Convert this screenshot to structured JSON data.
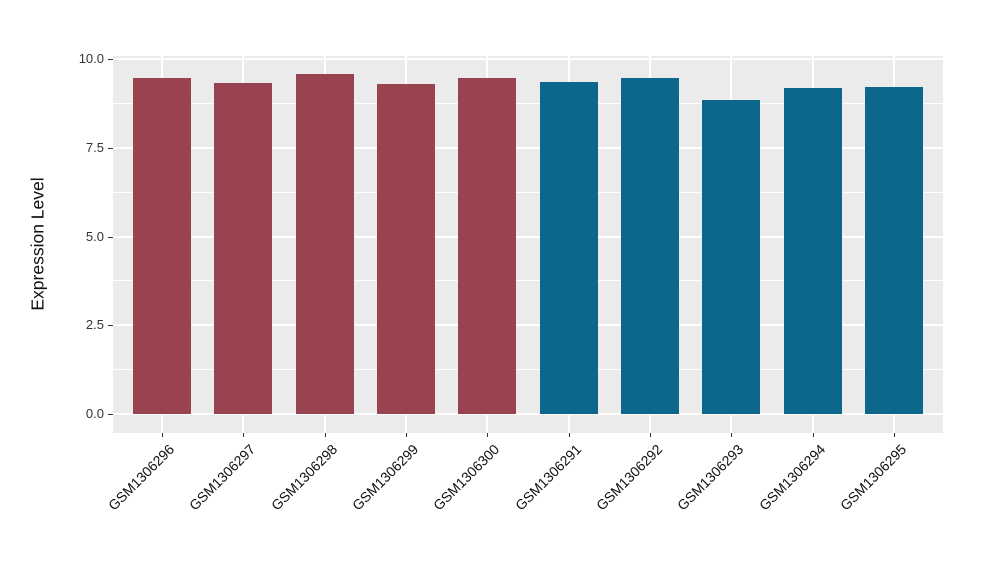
{
  "chart_data": {
    "type": "bar",
    "title": "",
    "xlabel": "",
    "ylabel": "Expression Level",
    "categories": [
      "GSM1306296",
      "GSM1306297",
      "GSM1306298",
      "GSM1306299",
      "GSM1306300",
      "GSM1306291",
      "GSM1306292",
      "GSM1306293",
      "GSM1306294",
      "GSM1306295"
    ],
    "values": [
      9.47,
      9.33,
      9.58,
      9.29,
      9.46,
      9.36,
      9.47,
      8.85,
      9.19,
      9.21
    ],
    "bar_colors": [
      "#9A4350",
      "#9A4350",
      "#9A4350",
      "#9A4350",
      "#9A4350",
      "#0C678A",
      "#0C678A",
      "#0C678A",
      "#0C678A",
      "#0C678A"
    ],
    "group_colors": {
      "left_group": "#9A4350",
      "right_group": "#0C678A"
    },
    "yticks": [
      0.0,
      2.5,
      5.0,
      7.5,
      10.0
    ],
    "ytick_labels": [
      "0.0",
      "2.5",
      "5.0",
      "7.5",
      "10.0"
    ],
    "ylim": [
      0,
      10
    ],
    "grid": true,
    "legend": false,
    "panel_background": "#EBEBEB",
    "grid_color": "#FFFFFF",
    "x_label_rotation_deg": 45
  }
}
